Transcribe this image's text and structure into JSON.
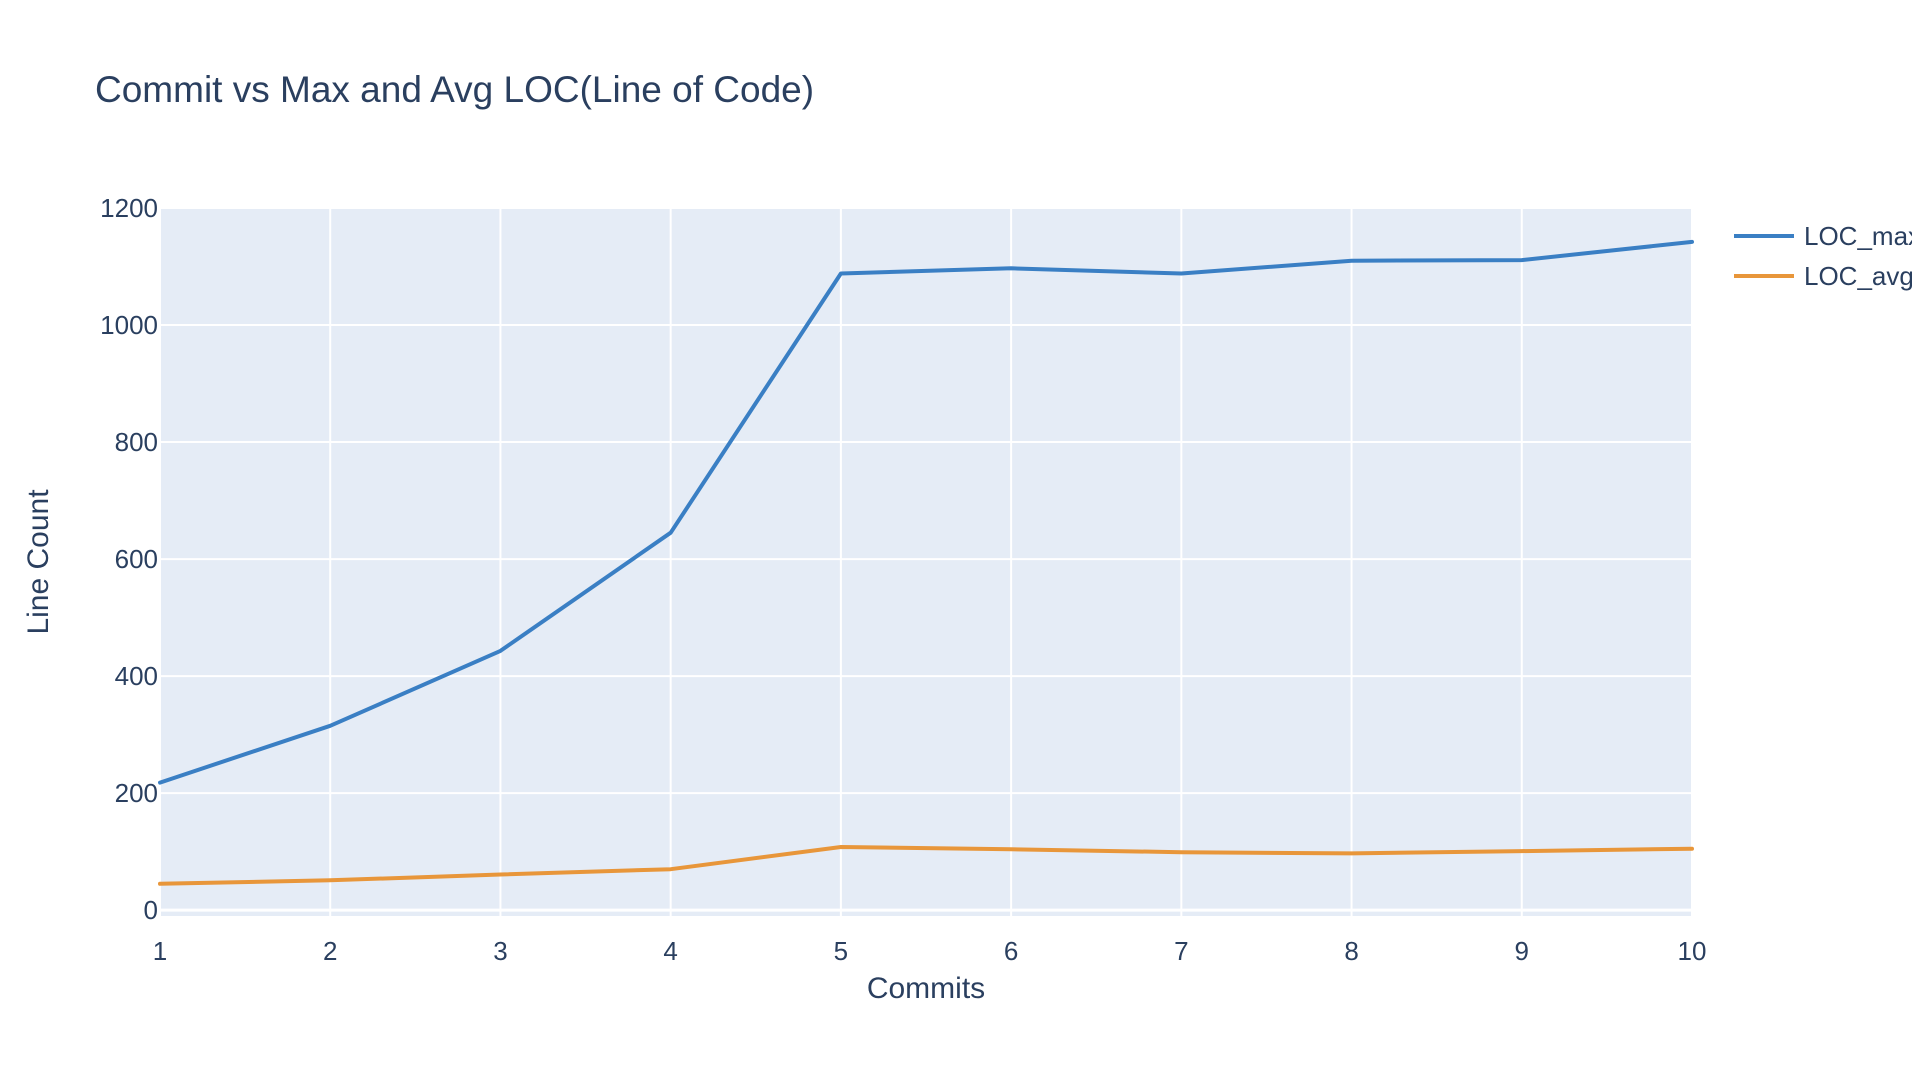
{
  "chart_data": {
    "type": "line",
    "title": "Commit vs Max and Avg LOC(Line of Code)",
    "xlabel": "Commits",
    "ylabel": "Line Count",
    "x": [
      1,
      2,
      3,
      4,
      5,
      6,
      7,
      8,
      9,
      10
    ],
    "xlim": [
      1,
      10
    ],
    "ylim": [
      -10,
      1200
    ],
    "yticks": [
      0,
      200,
      400,
      600,
      800,
      1000,
      1200
    ],
    "xticks": [
      1,
      2,
      3,
      4,
      5,
      6,
      7,
      8,
      9,
      10
    ],
    "grid": true,
    "legend_position": "top-right",
    "plot_background": "#e5ecf6",
    "series": [
      {
        "name": "LOC_max",
        "color": "#3a7fc4",
        "values": [
          218,
          315,
          443,
          645,
          1088,
          1097,
          1088,
          1110,
          1111,
          1142
        ]
      },
      {
        "name": "LOC_avg",
        "color": "#e8963a",
        "values": [
          45,
          51,
          61,
          70,
          108,
          104,
          99,
          97,
          101,
          105
        ]
      }
    ]
  }
}
